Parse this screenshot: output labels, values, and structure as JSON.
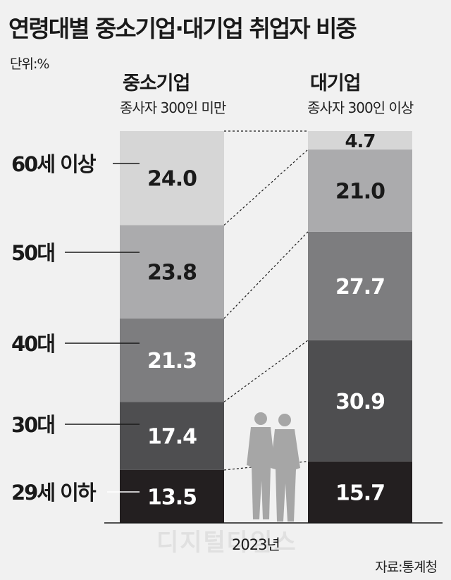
{
  "title": "연령대별 중소기업·대기업 취업자 비중",
  "unit": "단위:%",
  "year_label": "2023년",
  "source": "자료:통계청",
  "watermark": "디지털타임스",
  "chart_data": {
    "type": "bar",
    "stacked": true,
    "categories": [
      "29세 이하",
      "30대",
      "40대",
      "50대",
      "60세 이상"
    ],
    "series": [
      {
        "name": "중소기업",
        "subtitle": "종사자 300인 미만",
        "values": [
          13.5,
          17.4,
          21.3,
          23.8,
          24.0
        ]
      },
      {
        "name": "대기업",
        "subtitle": "종사자 300인 이상",
        "values": [
          15.7,
          30.9,
          27.7,
          21.0,
          4.7
        ]
      }
    ],
    "colors": [
      "#231f20",
      "#4e4e50",
      "#7d7d7f",
      "#ababad",
      "#d6d6d6"
    ],
    "label_colors": [
      "#ffffff",
      "#ffffff",
      "#ffffff",
      "#1a1a1a",
      "#1a1a1a"
    ],
    "ylim": [
      0,
      100
    ]
  }
}
